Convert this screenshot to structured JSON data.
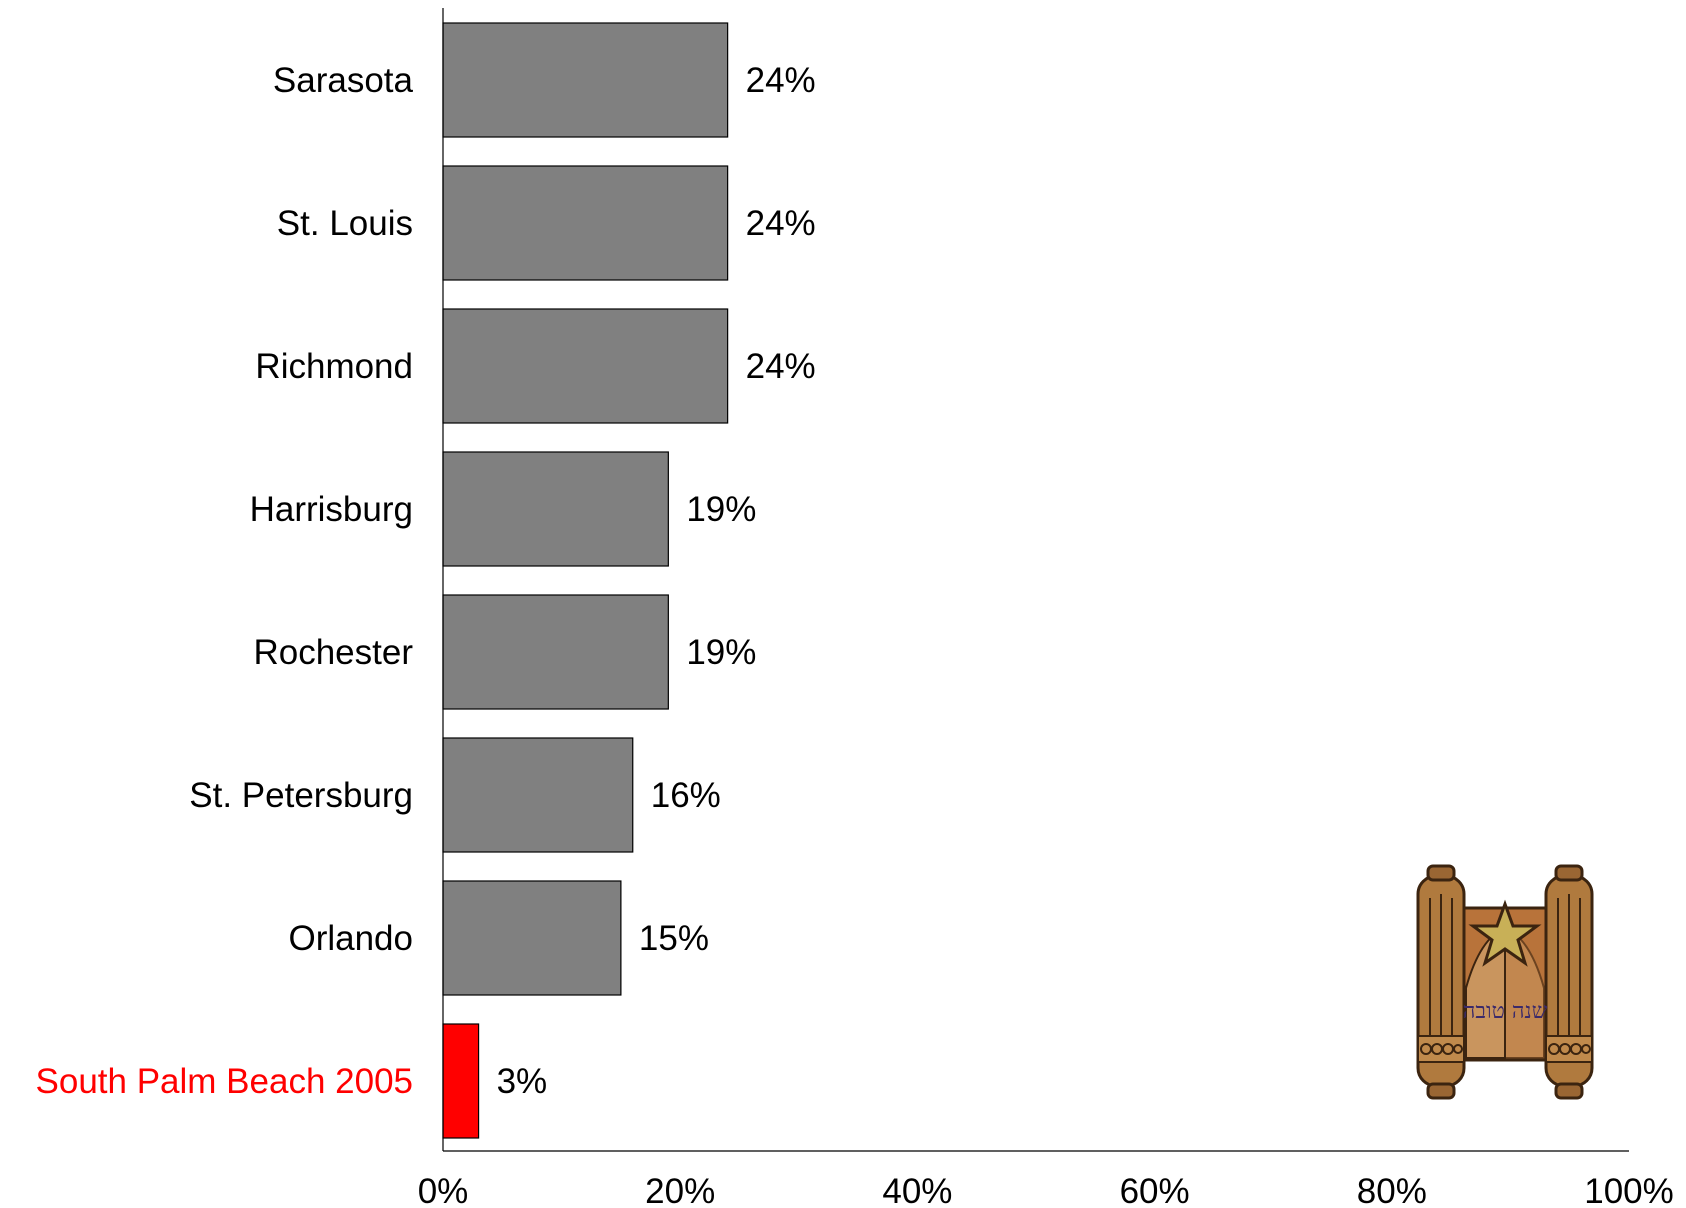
{
  "chart_data": {
    "type": "bar",
    "orientation": "horizontal",
    "categories": [
      "Sarasota",
      "St. Louis",
      "Richmond",
      "Harrisburg",
      "Rochester",
      "St. Petersburg",
      "Orlando",
      "South Palm Beach 2005"
    ],
    "values": [
      24,
      24,
      24,
      19,
      19,
      16,
      15,
      3
    ],
    "value_labels": [
      "24%",
      "24%",
      "24%",
      "19%",
      "19%",
      "16%",
      "15%",
      "3%"
    ],
    "highlight_index": 7,
    "colors": {
      "bar": "#808080",
      "highlight": "#ff0000",
      "highlight_label": "#ff0000",
      "text": "#000000",
      "axis": "#000000"
    },
    "xlim": [
      0,
      100
    ],
    "x_ticks": [
      0,
      20,
      40,
      60,
      80,
      100
    ],
    "x_tick_labels": [
      "0%",
      "20%",
      "40%",
      "60%",
      "80%",
      "100%"
    ],
    "grid": false,
    "legend": "none",
    "title": "",
    "xlabel": "",
    "ylabel": "",
    "decoration": {
      "icon": "torah-scroll-icon",
      "caption": "שנה טובה",
      "placement": "bottom-right"
    }
  }
}
